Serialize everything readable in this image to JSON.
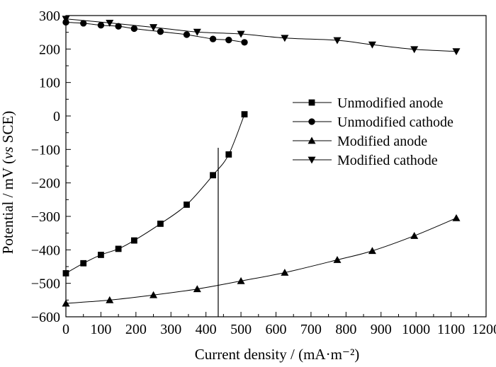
{
  "chart_data": {
    "type": "line",
    "title": "",
    "xlabel": "Current density / (mA·m⁻²)",
    "ylabel": "Potential / mV (vs SCE)",
    "ylabel_parts": [
      "Potential / mV (",
      "vs",
      " SCE)"
    ],
    "xlim": [
      0,
      1200
    ],
    "ylim": [
      -600,
      300
    ],
    "xticks": [
      0,
      100,
      200,
      300,
      400,
      500,
      600,
      700,
      800,
      900,
      1000,
      1100,
      1200
    ],
    "yticks": [
      -600,
      -500,
      -400,
      -300,
      -200,
      -100,
      0,
      100,
      200,
      300
    ],
    "grid": false,
    "legend_position": "right",
    "reference_line": {
      "x": 435,
      "y_from": -600,
      "y_to": -95
    },
    "series": [
      {
        "name": "Unmodified anode",
        "marker": "square",
        "x": [
          0,
          50,
          100,
          150,
          195,
          270,
          345,
          420,
          465,
          510
        ],
        "y": [
          -470,
          -440,
          -415,
          -397,
          -372,
          -322,
          -265,
          -177,
          -115,
          5
        ]
      },
      {
        "name": "Unmodified cathode",
        "marker": "circle",
        "x": [
          0,
          50,
          100,
          150,
          195,
          270,
          345,
          420,
          465,
          510
        ],
        "y": [
          280,
          277,
          271,
          268,
          261,
          252,
          243,
          230,
          227,
          220
        ]
      },
      {
        "name": "Modified anode",
        "marker": "triangle-up",
        "x": [
          0,
          125,
          250,
          375,
          500,
          625,
          775,
          875,
          995,
          1115
        ],
        "y": [
          -560,
          -550,
          -535,
          -517,
          -493,
          -468,
          -430,
          -403,
          -358,
          -305
        ]
      },
      {
        "name": "Modified cathode",
        "marker": "triangle-down",
        "x": [
          0,
          125,
          250,
          375,
          500,
          625,
          775,
          875,
          995,
          1115
        ],
        "y": [
          290,
          278,
          265,
          251,
          245,
          233,
          226,
          213,
          199,
          193
        ]
      }
    ]
  }
}
